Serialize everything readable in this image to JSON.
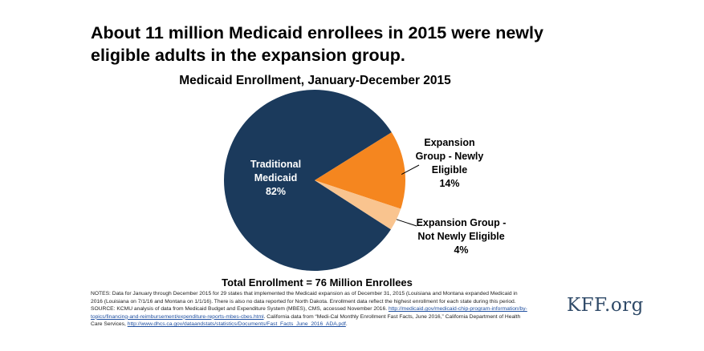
{
  "headline": "About 11 million Medicaid enrollees in 2015 were newly eligible adults in the expansion group.",
  "chart_data": {
    "type": "pie",
    "title": "Medicaid Enrollment, January-December 2015",
    "slices": [
      {
        "name_lines": [
          "Traditional",
          "Medicaid"
        ],
        "value": 82,
        "label": "82%",
        "color": "#1b3a5c"
      },
      {
        "name_lines": [
          "Expansion",
          "Group - Newly",
          "Eligible"
        ],
        "value": 14,
        "label": "14%",
        "color": "#f5861f"
      },
      {
        "name_lines": [
          "Expansion Group -",
          "Not Newly Eligible"
        ],
        "value": 4,
        "label": "4%",
        "color": "#f9c48f"
      }
    ],
    "total_label": "Total Enrollment = 76 Million Enrollees"
  },
  "notes": {
    "line1": "NOTES: Data for January through December 2015 for 29 states that implemented the Medicaid expansion as of December 31, 2015 (Louisiana and Montana expanded Medicaid in 2016 (Louisiana on 7/1/16 and Montana on 1/1/16). There is also no data reported for North Dakota. Enrollment data reflect the highest enrollment for each state during this period.",
    "source_prefix": "SOURCE: KCMU analysis of data from Medicaid Budget and Expenditure System (MBES), CMS, accessed November 2016.",
    "source_link1": "http://medicaid.gov/medicaid-chip-program-information/by-topics/financing-and-reimbursement/expenditure-reports-mbes-cbes.html",
    "source_mid": ". California data from “Medi-Cal Monthly Enrollment Fast Facts, June 2016,” California Department of Health Care Services,",
    "source_link2": "http://www.dhcs.ca.gov/dataandstats/statistics/Documents/Fast_Facts_June_2016_ADA.pdf",
    "source_end": "."
  },
  "brand": "KFF.org"
}
